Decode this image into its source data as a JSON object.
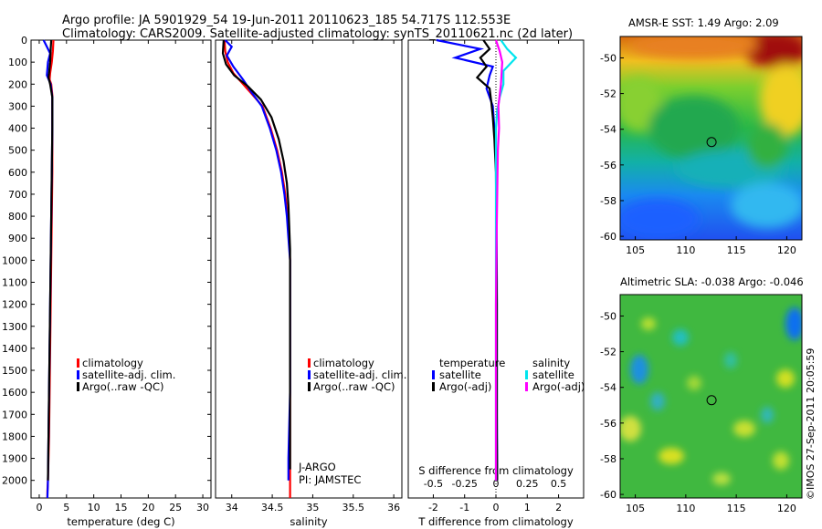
{
  "header": {
    "line1": "Argo profile: JA 5901929_54 19-Jun-2011 20110623_185 54.717S 112.553E",
    "line2": "Climatology: CARS2009. Satellite-adjusted climatology: synTS_20110621.nc (2d later)"
  },
  "colors": {
    "climatology": "#ff0000",
    "satellite": "#0000ff",
    "argo": "#000000",
    "sal_satellite": "#00e5ee",
    "sal_argo": "#ff00ff"
  },
  "chart_data": [
    {
      "type": "line",
      "id": "temperature",
      "xlabel": "temperature (deg C)",
      "ylabel": "",
      "xlim": [
        -1.5,
        31.5
      ],
      "ylim": [
        2080,
        0
      ],
      "xticks": [
        0,
        5,
        10,
        15,
        20,
        25,
        30
      ],
      "xtick_labels": [
        "0",
        "5",
        "10",
        "15",
        "20",
        "25",
        "30"
      ],
      "yticks": [
        0,
        100,
        200,
        300,
        400,
        500,
        600,
        700,
        800,
        900,
        1000,
        1100,
        1200,
        1300,
        1400,
        1500,
        1600,
        1700,
        1800,
        1900,
        2000
      ],
      "series": [
        {
          "name": "climatology",
          "color_key": "climatology",
          "x": [
            2.6,
            2.5,
            2.3,
            2.0,
            1.9,
            2.2,
            2.4,
            2.4,
            2.4,
            2.3,
            2.2,
            2.1,
            2.0,
            1.9,
            1.8,
            1.7,
            1.6,
            1.5,
            1.5
          ],
          "y": [
            0,
            50,
            100,
            150,
            180,
            200,
            250,
            400,
            600,
            800,
            1000,
            1200,
            1400,
            1600,
            1800,
            1900,
            2000,
            2050,
            2080
          ]
        },
        {
          "name": "satellite-adj. clim.",
          "color_key": "satellite",
          "x": [
            0.8,
            1.2,
            2.0,
            1.6,
            1.4,
            2.1,
            2.4,
            2.4,
            2.3,
            2.2,
            2.1,
            2.0,
            1.9,
            1.8,
            1.7,
            1.6,
            1.5
          ],
          "y": [
            0,
            20,
            60,
            100,
            160,
            200,
            260,
            400,
            600,
            800,
            1000,
            1200,
            1400,
            1600,
            1800,
            2000,
            2080
          ]
        },
        {
          "name": "Argo(..raw -QC)",
          "color_key": "argo",
          "x": [
            2.2,
            2.1,
            2.0,
            1.8,
            1.7,
            2.0,
            2.4,
            2.4,
            2.3,
            2.2,
            2.1,
            2.0,
            1.9,
            1.8,
            1.7,
            1.6
          ],
          "y": [
            0,
            40,
            100,
            150,
            170,
            200,
            260,
            400,
            600,
            800,
            1000,
            1200,
            1400,
            1600,
            1800,
            2000
          ]
        }
      ],
      "legend": {
        "entries": [
          "climatology",
          "satellite-adj. clim.",
          "Argo(..raw -QC)"
        ],
        "placement": "lower-center"
      }
    },
    {
      "type": "line",
      "id": "salinity",
      "xlabel": "salinity",
      "xlim": [
        33.8,
        36.1
      ],
      "ylim": [
        2080,
        0
      ],
      "xticks": [
        34,
        34.5,
        35,
        35.5,
        36
      ],
      "xtick_labels": [
        "34",
        "34.5",
        "35",
        "35.5",
        "36"
      ],
      "series": [
        {
          "name": "climatology",
          "color_key": "climatology",
          "x": [
            33.91,
            33.92,
            33.95,
            34.02,
            34.14,
            34.26,
            34.38,
            34.48,
            34.56,
            34.62,
            34.66,
            34.69,
            34.71,
            34.72,
            34.72,
            34.72,
            34.72,
            34.72,
            34.72
          ],
          "y": [
            0,
            50,
            100,
            150,
            200,
            250,
            300,
            400,
            500,
            600,
            700,
            800,
            900,
            1000,
            1200,
            1400,
            1600,
            1800,
            2080
          ]
        },
        {
          "name": "satellite-adj. clim.",
          "color_key": "satellite",
          "x": [
            33.92,
            34.0,
            33.94,
            34.02,
            34.14,
            34.25,
            34.37,
            34.47,
            34.55,
            34.61,
            34.65,
            34.68,
            34.7,
            34.72,
            34.72,
            34.72,
            34.72,
            34.7,
            34.7
          ],
          "y": [
            0,
            30,
            70,
            120,
            180,
            240,
            300,
            400,
            500,
            600,
            700,
            800,
            900,
            1000,
            1200,
            1400,
            1600,
            1900,
            2000
          ]
        },
        {
          "name": "Argo(..raw -QC)",
          "color_key": "argo",
          "x": [
            33.9,
            33.89,
            33.93,
            34.03,
            34.2,
            34.36,
            34.49,
            34.58,
            34.64,
            34.68,
            34.7,
            34.71,
            34.72,
            34.72,
            34.72,
            34.72,
            34.72,
            34.72
          ],
          "y": [
            0,
            60,
            110,
            160,
            210,
            270,
            350,
            450,
            550,
            650,
            750,
            850,
            950,
            1100,
            1300,
            1500,
            1700,
            1950
          ]
        }
      ],
      "legend": {
        "entries": [
          "climatology",
          "satellite-adj. clim.",
          "Argo(..raw -QC)"
        ],
        "placement": "lower-center"
      },
      "annotations": [
        "J-ARGO",
        "PI: JAMSTEC"
      ]
    },
    {
      "type": "line",
      "id": "difference",
      "xlabel": "T difference from climatology",
      "x2label": "S difference from climatology",
      "xlim": [
        -2.8,
        2.8
      ],
      "ylim": [
        2080,
        0
      ],
      "xticks": [
        -2,
        -1,
        0,
        1,
        2
      ],
      "xtick_labels": [
        "-2",
        "-1",
        "0",
        "1",
        "2"
      ],
      "x2ticks": [
        -0.5,
        -0.25,
        0,
        0.25,
        0.5
      ],
      "x2tick_labels": [
        "-0.5",
        "-0.25",
        "0",
        "0.25",
        "0.5"
      ],
      "x2lim": [
        -0.7,
        0.7
      ],
      "zero_line": true,
      "series": [
        {
          "name": "temperature satellite",
          "axis": "T",
          "color_key": "satellite",
          "x": [
            -1.9,
            -0.5,
            -1.3,
            -0.1,
            -0.2,
            -0.3,
            -0.1,
            -0.05,
            0.0,
            0.02,
            0.02,
            0.03,
            0.03,
            0.03,
            0.03,
            0.04
          ],
          "y": [
            0,
            40,
            80,
            120,
            160,
            220,
            300,
            400,
            500,
            700,
            900,
            1100,
            1300,
            1500,
            1700,
            2000
          ]
        },
        {
          "name": "temperature Argo(-adj)",
          "axis": "T",
          "color_key": "argo",
          "x": [
            -0.4,
            -0.2,
            -0.5,
            -0.3,
            -0.6,
            -0.2,
            -0.15,
            -0.1,
            -0.05,
            0.0,
            0.01,
            0.02,
            0.03,
            0.03,
            0.03,
            0.04
          ],
          "y": [
            0,
            40,
            80,
            120,
            170,
            220,
            280,
            350,
            450,
            600,
            800,
            1000,
            1200,
            1500,
            1800,
            2000
          ]
        },
        {
          "name": "salinity satellite",
          "axis": "S",
          "color_key": "sal_satellite",
          "x": [
            0.04,
            0.09,
            0.16,
            0.06,
            0.06,
            0.03,
            0.01,
            0.0,
            0.0,
            0.0,
            0.0,
            0.0,
            0.0,
            0.0,
            0.0
          ],
          "y": [
            0,
            40,
            80,
            140,
            200,
            260,
            320,
            400,
            500,
            700,
            900,
            1200,
            1500,
            1800,
            2000
          ]
        },
        {
          "name": "salinity Argo(-adj)",
          "axis": "S",
          "color_key": "sal_argo",
          "x": [
            0.0,
            0.03,
            0.05,
            0.04,
            0.02,
            0.025,
            0.015,
            0.01,
            0.005,
            0.0,
            0.0,
            0.0
          ],
          "y": [
            0,
            50,
            100,
            200,
            300,
            400,
            500,
            700,
            900,
            1200,
            1600,
            2000
          ]
        }
      ],
      "legend": {
        "temperature_title": "temperature",
        "salinity_title": "salinity",
        "entries": [
          "satellite",
          "Argo(-adj)",
          "satellite",
          "Argo(-adj)"
        ],
        "placement": "lower-center"
      }
    },
    {
      "type": "heatmap",
      "id": "amsr-sst",
      "title": "AMSR-E SST: 1.49 Argo: 2.09",
      "xlim": [
        103.5,
        121.5
      ],
      "ylim": [
        -60.2,
        -48.8
      ],
      "xticks": [
        105,
        110,
        115,
        120
      ],
      "xtick_labels": [
        "105",
        "110",
        "115",
        "120"
      ],
      "yticks": [
        -50,
        -52,
        -54,
        -56,
        -58,
        -60
      ],
      "ytick_labels": [
        "-50",
        "-52",
        "-54",
        "-56",
        "-58",
        "-60"
      ],
      "marker": {
        "lon": 112.553,
        "lat": -54.717
      }
    },
    {
      "type": "heatmap",
      "id": "altimetric-sla",
      "title": "Altimetric SLA: -0.038 Argo: -0.046",
      "xlim": [
        103.5,
        121.5
      ],
      "ylim": [
        -60.2,
        -48.8
      ],
      "xticks": [
        105,
        110,
        115,
        120
      ],
      "xtick_labels": [
        "105",
        "110",
        "115",
        "120"
      ],
      "yticks": [
        -50,
        -52,
        -54,
        -56,
        -58,
        -60
      ],
      "ytick_labels": [
        "-50",
        "-52",
        "-54",
        "-56",
        "-58",
        "-60"
      ],
      "marker": {
        "lon": 112.553,
        "lat": -54.717
      }
    }
  ],
  "credit": "©IMOS 27-Sep-2011 20:05:59"
}
